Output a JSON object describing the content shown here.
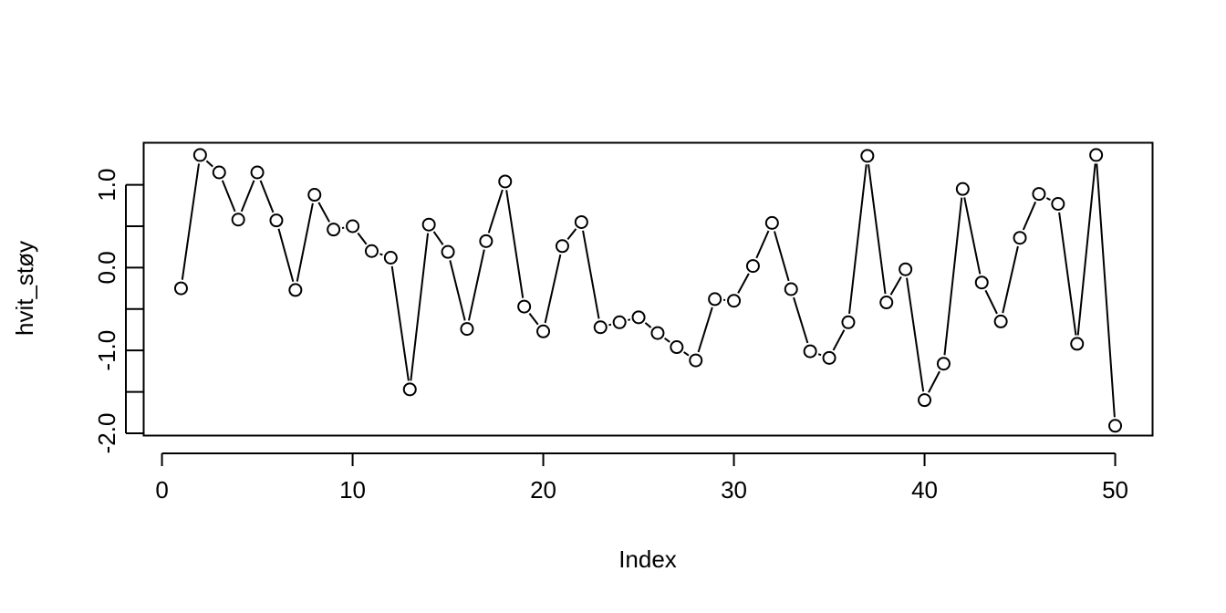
{
  "chart_data": {
    "type": "line",
    "markers": "open-circle",
    "title": "",
    "xlabel": "Index",
    "ylabel": "hvit_støy",
    "xlim": [
      -0.96,
      51.96
    ],
    "ylim": [
      -2.028,
      1.508
    ],
    "xticks": [
      0,
      10,
      20,
      30,
      40,
      50
    ],
    "xtick_labels": [
      "0",
      "10",
      "20",
      "30",
      "40",
      "50"
    ],
    "yticks": [
      -2.0,
      -1.0,
      0.0,
      1.0
    ],
    "ytick_labels": [
      "-2.0",
      "-1.0",
      "0.0",
      "1.0"
    ],
    "minor_yticks": [
      -1.5,
      -0.5,
      0.5
    ],
    "grid": false,
    "legend": "none",
    "series": [
      {
        "x": [
          1,
          2,
          3,
          4,
          5,
          6,
          7,
          8,
          9,
          10,
          11,
          12,
          13,
          14,
          15,
          16,
          17,
          18,
          19,
          20,
          21,
          22,
          23,
          24,
          25,
          26,
          27,
          28,
          29,
          30,
          31,
          32,
          33,
          34,
          35,
          36,
          37,
          38,
          39,
          40,
          41,
          42,
          43,
          44,
          45,
          46,
          47,
          48,
          49,
          50
        ],
        "values": [
          -0.25,
          1.36,
          1.15,
          0.58,
          1.15,
          0.57,
          -0.27,
          0.88,
          0.46,
          0.5,
          0.2,
          0.12,
          -1.47,
          0.52,
          0.19,
          -0.74,
          0.32,
          1.04,
          -0.47,
          -0.77,
          0.26,
          0.55,
          -0.72,
          -0.66,
          -0.6,
          -0.79,
          -0.96,
          -1.12,
          -0.38,
          -0.4,
          0.02,
          0.54,
          -0.26,
          -1.01,
          -1.09,
          -0.66,
          1.35,
          -0.42,
          -0.02,
          -1.6,
          -1.16,
          0.95,
          -0.18,
          -0.65,
          0.36,
          0.89,
          0.77,
          -0.92,
          1.36,
          -1.91
        ]
      }
    ]
  }
}
